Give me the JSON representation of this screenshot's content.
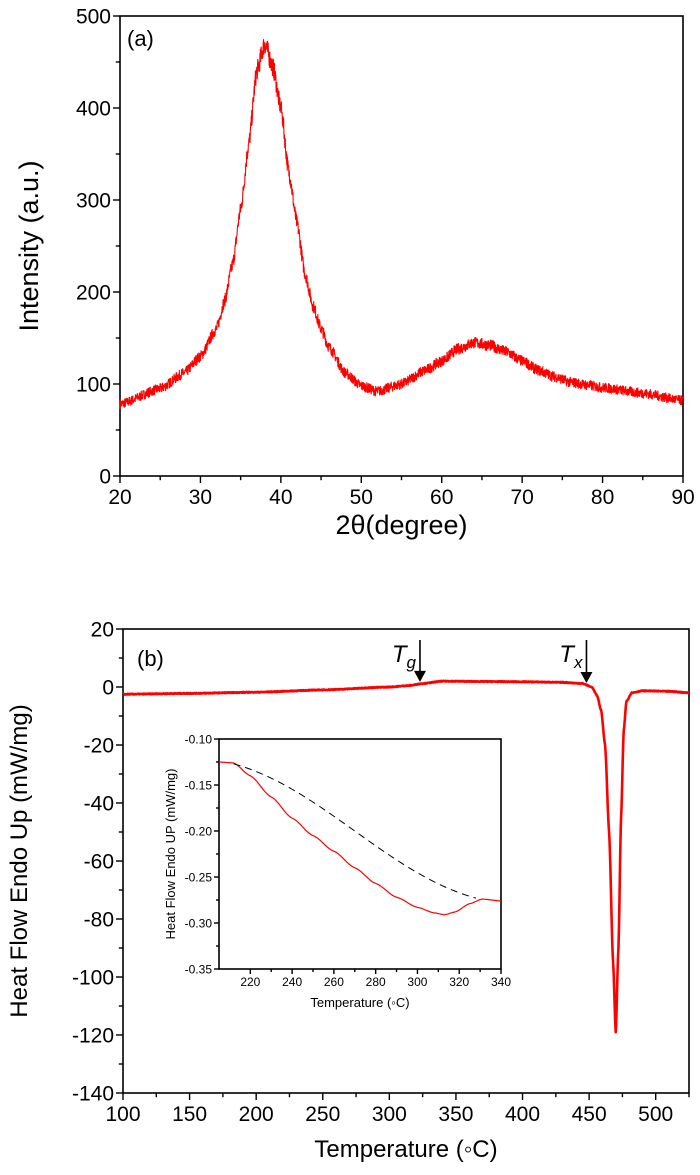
{
  "chart_data": [
    {
      "type": "line",
      "panel_label": "(a)",
      "xlabel": "2θ(degree)",
      "ylabel": "Intensity (a.u.)",
      "xlim": [
        20,
        90
      ],
      "ylim": [
        0,
        500
      ],
      "xticks": [
        "20",
        "30",
        "40",
        "50",
        "60",
        "70",
        "80",
        "90"
      ],
      "yticks": [
        "0",
        "100",
        "200",
        "300",
        "400",
        "500"
      ],
      "grid": false,
      "color": "#ff0000",
      "series": [
        {
          "x": [
            20,
            25,
            28,
            30,
            32,
            33,
            34,
            35,
            36,
            37,
            38,
            39,
            40,
            41,
            42,
            43,
            44,
            45,
            46,
            48,
            50,
            52,
            55,
            58,
            60,
            62,
            64,
            66,
            68,
            70,
            72,
            74,
            76,
            78,
            80,
            85,
            90
          ],
          "y": [
            78,
            95,
            112,
            130,
            160,
            190,
            230,
            290,
            360,
            440,
            470,
            445,
            400,
            330,
            275,
            220,
            185,
            160,
            140,
            112,
            98,
            92,
            100,
            115,
            125,
            138,
            145,
            142,
            135,
            125,
            115,
            108,
            102,
            99,
            96,
            90,
            82
          ]
        }
      ]
    },
    {
      "type": "line",
      "panel_label": "(b)",
      "xlabel": "Temperature (◦C)",
      "ylabel": "Heat Flow Endo Up (mW/mg)",
      "xlim": [
        100,
        525
      ],
      "ylim": [
        -140,
        20
      ],
      "xticks": [
        "100",
        "150",
        "200",
        "250",
        "300",
        "350",
        "400",
        "450",
        "500"
      ],
      "yticks": [
        "-140",
        "-120",
        "-100",
        "-80",
        "-60",
        "-40",
        "-20",
        "0",
        "20"
      ],
      "grid": false,
      "color": "#ff0000",
      "annotations": [
        {
          "label": "T",
          "sub": "g",
          "x": 323
        },
        {
          "label": "T",
          "sub": "x",
          "x": 448
        }
      ],
      "series": [
        {
          "x": [
            100,
            150,
            200,
            250,
            300,
            315,
            325,
            340,
            370,
            400,
            430,
            445,
            452,
            456,
            459,
            462,
            465,
            468,
            470,
            472,
            474,
            476,
            478,
            482,
            490,
            510,
            525
          ],
          "y": [
            -2.5,
            -2.2,
            -1.8,
            -1.0,
            0,
            0.5,
            1.2,
            2.0,
            1.9,
            1.8,
            1.6,
            1.2,
            0,
            -3,
            -8,
            -20,
            -50,
            -95,
            -119,
            -90,
            -45,
            -15,
            -5,
            -2,
            -1.3,
            -1.5,
            -2
          ]
        }
      ],
      "inset": {
        "xlabel": "Temperature (◦C)",
        "ylabel": "Heat Flow Endo UP (mW/mg)",
        "xlim": [
          205,
          340
        ],
        "ylim": [
          -0.35,
          -0.1
        ],
        "xticks": [
          "220",
          "240",
          "260",
          "280",
          "300",
          "320",
          "340"
        ],
        "yticks": [
          "-0.35",
          "-0.30",
          "-0.25",
          "-0.20",
          "-0.15",
          "-0.10"
        ],
        "series": [
          {
            "style": "solid",
            "color": "#ff0000",
            "x": [
              205,
              212,
              220,
              230,
              240,
              250,
              260,
              270,
              280,
              290,
              300,
              308,
              313,
              318,
              325,
              331,
              340
            ],
            "y": [
              -0.125,
              -0.126,
              -0.14,
              -0.163,
              -0.186,
              -0.205,
              -0.222,
              -0.24,
              -0.257,
              -0.272,
              -0.283,
              -0.289,
              -0.291,
              -0.288,
              -0.279,
              -0.274,
              -0.276
            ]
          },
          {
            "style": "dashed",
            "color": "#000000",
            "x": [
              212,
              328
            ],
            "y": [
              -0.127,
              -0.273
            ]
          }
        ]
      }
    }
  ]
}
